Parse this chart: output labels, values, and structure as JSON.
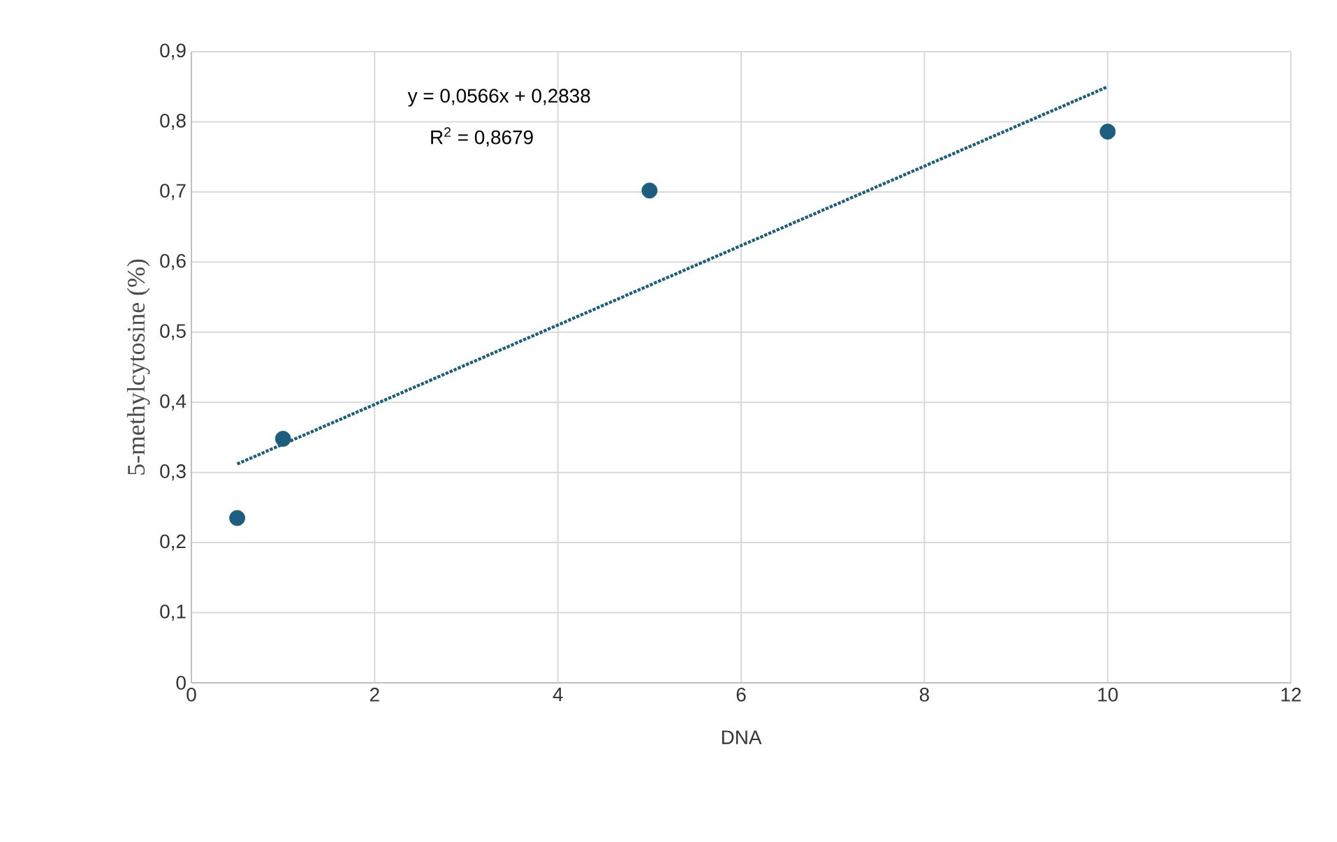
{
  "chart_data": {
    "type": "scatter",
    "xlabel": "DNA",
    "ylabel": "5-methylcytosine (%)",
    "series": [
      {
        "color": "#1b5e7d",
        "marker": "circle",
        "x": [
          0.5,
          1,
          5,
          10
        ],
        "values": [
          0.235,
          0.348,
          0.702,
          0.786
        ]
      },
      {
        "type": "line",
        "color": "#1b5e7d",
        "marker": "none",
        "line_style": "dotted",
        "x": [
          0.5,
          10
        ],
        "values": [
          0.312,
          0.85
        ]
      }
    ],
    "annotations": [
      "y = 0,0566x + 0,2838",
      "R$^{2}$ = 0,8679"
    ],
    "xlim": [
      0,
      12
    ],
    "xticks": [
      0,
      2,
      4,
      6,
      8,
      10,
      12
    ],
    "ylim": [
      0,
      0.9
    ],
    "yticks": [
      0,
      {
        "value": 0.1,
        "label": "0,1"
      },
      {
        "value": 0.2,
        "label": "0,2"
      },
      {
        "value": 0.3,
        "label": "0,3"
      },
      {
        "value": 0.4,
        "label": "0,4"
      },
      {
        "value": 0.5,
        "label": "0,5"
      },
      {
        "value": 0.6,
        "label": "0,6"
      },
      {
        "value": 0.7,
        "label": "0,7"
      },
      {
        "value": 0.8,
        "label": "0,8"
      },
      {
        "value": 0.9,
        "label": "0,9"
      }
    ],
    "grid": true
  }
}
